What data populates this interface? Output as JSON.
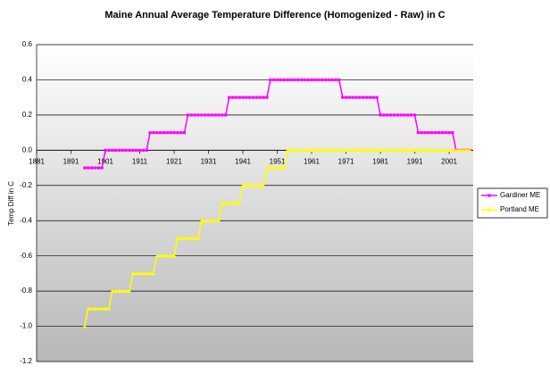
{
  "chart_data": {
    "type": "line",
    "title": "Maine Annual Average Temperature Difference (Homogenized - Raw) in C",
    "ylabel": "Temp Diff in C",
    "x": [
      1895,
      1896,
      1897,
      1898,
      1899,
      1900,
      1901,
      1902,
      1903,
      1904,
      1905,
      1906,
      1907,
      1908,
      1909,
      1910,
      1911,
      1912,
      1913,
      1914,
      1915,
      1916,
      1917,
      1918,
      1919,
      1920,
      1921,
      1922,
      1923,
      1924,
      1925,
      1926,
      1927,
      1928,
      1929,
      1930,
      1931,
      1932,
      1933,
      1934,
      1935,
      1936,
      1937,
      1938,
      1939,
      1940,
      1941,
      1942,
      1943,
      1944,
      1945,
      1946,
      1947,
      1948,
      1949,
      1950,
      1951,
      1952,
      1953,
      1954,
      1955,
      1956,
      1957,
      1958,
      1959,
      1960,
      1961,
      1962,
      1963,
      1964,
      1965,
      1966,
      1967,
      1968,
      1969,
      1970,
      1971,
      1972,
      1973,
      1974,
      1975,
      1976,
      1977,
      1978,
      1979,
      1980,
      1981,
      1982,
      1983,
      1984,
      1985,
      1986,
      1987,
      1988,
      1989,
      1990,
      1991,
      1992,
      1993,
      1994,
      1995,
      1996,
      1997,
      1998,
      1999,
      2000,
      2001,
      2002,
      2003,
      2004,
      2005,
      2006,
      2007
    ],
    "series": [
      {
        "name": "Gardiner ME",
        "color": "#ff00ff",
        "marker": "square",
        "values": [
          -0.1,
          -0.1,
          -0.1,
          -0.1,
          -0.1,
          -0.1,
          0,
          0,
          0,
          0,
          0,
          0,
          0,
          0,
          0,
          0,
          0,
          0,
          0,
          0.1,
          0.1,
          0.1,
          0.1,
          0.1,
          0.1,
          0.1,
          0.1,
          0.1,
          0.1,
          0.1,
          0.2,
          0.2,
          0.2,
          0.2,
          0.2,
          0.2,
          0.2,
          0.2,
          0.2,
          0.2,
          0.2,
          0.2,
          0.3,
          0.3,
          0.3,
          0.3,
          0.3,
          0.3,
          0.3,
          0.3,
          0.3,
          0.3,
          0.3,
          0.3,
          0.4,
          0.4,
          0.4,
          0.4,
          0.4,
          0.4,
          0.4,
          0.4,
          0.4,
          0.4,
          0.4,
          0.4,
          0.4,
          0.4,
          0.4,
          0.4,
          0.4,
          0.4,
          0.4,
          0.4,
          0.4,
          0.3,
          0.3,
          0.3,
          0.3,
          0.3,
          0.3,
          0.3,
          0.3,
          0.3,
          0.3,
          0.3,
          0.2,
          0.2,
          0.2,
          0.2,
          0.2,
          0.2,
          0.2,
          0.2,
          0.2,
          0.2,
          0.2,
          0.1,
          0.1,
          0.1,
          0.1,
          0.1,
          0.1,
          0.1,
          0.1,
          0.1,
          0.1,
          0.1,
          0,
          0,
          0,
          0,
          0
        ]
      },
      {
        "name": "Portland ME",
        "color": "#ffff00",
        "marker": "triangle",
        "values": [
          -1.0,
          -0.9,
          -0.9,
          -0.9,
          -0.9,
          -0.9,
          -0.9,
          -0.9,
          -0.8,
          -0.8,
          -0.8,
          -0.8,
          -0.8,
          -0.8,
          -0.7,
          -0.7,
          -0.7,
          -0.7,
          -0.7,
          -0.7,
          -0.7,
          -0.6,
          -0.6,
          -0.6,
          -0.6,
          -0.6,
          -0.6,
          -0.5,
          -0.5,
          -0.5,
          -0.5,
          -0.5,
          -0.5,
          -0.5,
          -0.4,
          -0.4,
          -0.4,
          -0.4,
          -0.4,
          -0.4,
          -0.3,
          -0.3,
          -0.3,
          -0.3,
          -0.3,
          -0.3,
          -0.2,
          -0.2,
          -0.2,
          -0.2,
          -0.2,
          -0.2,
          -0.2,
          -0.1,
          -0.1,
          -0.1,
          -0.1,
          -0.1,
          -0.1,
          0,
          0,
          0,
          0,
          0,
          0,
          0,
          0,
          0,
          0,
          0,
          0,
          0,
          0,
          0,
          0,
          0,
          0,
          0,
          0,
          0,
          0,
          0,
          0,
          0,
          0,
          0,
          0,
          0,
          0,
          0,
          0,
          0,
          0,
          0,
          0,
          0,
          0,
          0,
          0,
          0,
          0,
          0,
          0,
          0,
          0,
          0,
          0,
          0,
          0,
          0,
          0,
          0,
          0
        ]
      }
    ],
    "xlim": [
      1881,
      2008
    ],
    "xticks": [
      1881,
      1891,
      1901,
      1911,
      1921,
      1931,
      1941,
      1951,
      1961,
      1971,
      1981,
      1991,
      2001
    ],
    "ylim": [
      -1.2,
      0.6
    ],
    "yticks": [
      0.6,
      0.4,
      0.2,
      {
        "value": 0,
        "label": "0.0"
      },
      -0.2,
      -0.4,
      -0.6,
      -0.8,
      {
        "value": -1,
        "label": "-1.0"
      },
      -1.2
    ],
    "grid": true,
    "legend": "right"
  }
}
